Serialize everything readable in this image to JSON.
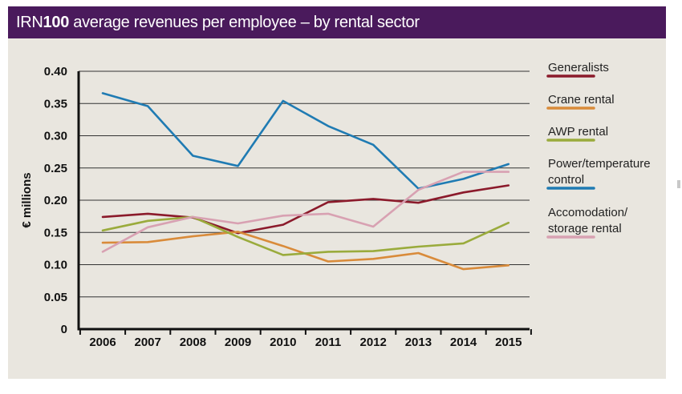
{
  "header": {
    "title_bold_prefix_pre": "IRN",
    "title_bold": "100",
    "title_rest": " average revenues per employee – by rental sector"
  },
  "chart_data": {
    "type": "line",
    "title": "IRN100 average revenues per employee – by rental sector",
    "xlabel": "",
    "ylabel": "€ millions",
    "categories": [
      "2006",
      "2007",
      "2008",
      "2009",
      "2010",
      "2011",
      "2012",
      "2013",
      "2014",
      "2015"
    ],
    "ylim": [
      0,
      0.4
    ],
    "yticks": [
      {
        "value": 0,
        "label": "0"
      },
      {
        "value": 0.05,
        "label": "0.05"
      },
      {
        "value": 0.1,
        "label": "0.10"
      },
      {
        "value": 0.15,
        "label": "0.15"
      },
      {
        "value": 0.2,
        "label": "0.20"
      },
      {
        "value": 0.25,
        "label": "0.25"
      },
      {
        "value": 0.3,
        "label": "0.30"
      },
      {
        "value": 0.35,
        "label": "0.35"
      },
      {
        "value": 0.4,
        "label": "0.40"
      }
    ],
    "grid": true,
    "legend_position": "right",
    "series": [
      {
        "name": "Generalists",
        "legend_lines": [
          "Generalists"
        ],
        "color": "#8b1a2b",
        "values": [
          0.174,
          0.179,
          0.173,
          0.149,
          0.162,
          0.197,
          0.202,
          0.196,
          0.212,
          0.223
        ]
      },
      {
        "name": "Crane rental",
        "legend_lines": [
          "Crane rental"
        ],
        "color": "#d98b3a",
        "values": [
          0.134,
          0.135,
          0.144,
          0.151,
          0.129,
          0.105,
          0.109,
          0.118,
          0.093,
          0.099
        ]
      },
      {
        "name": "AWP rental",
        "legend_lines": [
          "AWP rental"
        ],
        "color": "#9aab3c",
        "values": [
          0.153,
          0.168,
          0.174,
          0.143,
          0.115,
          0.12,
          0.121,
          0.128,
          0.133,
          0.165
        ]
      },
      {
        "name": "Power/temperature control",
        "legend_lines": [
          "Power/temperature",
          "control"
        ],
        "color": "#1f7bb3",
        "values": [
          0.366,
          0.346,
          0.269,
          0.253,
          0.354,
          0.315,
          0.286,
          0.218,
          0.233,
          0.256
        ]
      },
      {
        "name": "Accomodation/storage rental",
        "legend_lines": [
          "Accomodation/",
          "storage rental"
        ],
        "color": "#d8a1b2",
        "values": [
          0.12,
          0.158,
          0.174,
          0.164,
          0.176,
          0.179,
          0.159,
          0.216,
          0.244,
          0.244
        ]
      }
    ]
  }
}
